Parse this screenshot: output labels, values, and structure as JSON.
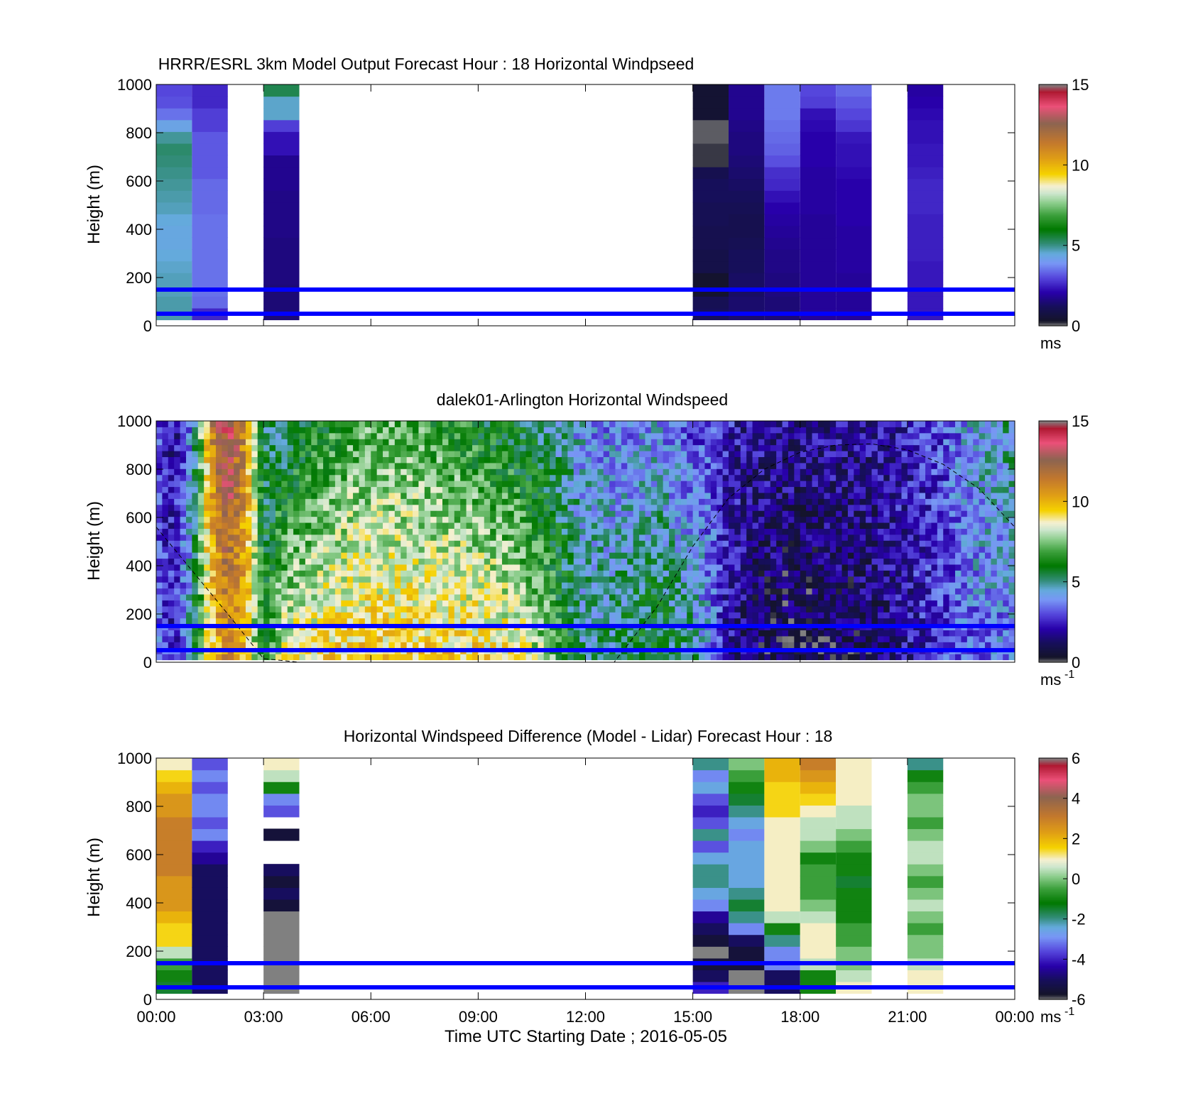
{
  "figure": {
    "xlabel": "Time UTC  Starting Date ; 2016-05-05",
    "x_ticks": [
      "00:00",
      "03:00",
      "06:00",
      "09:00",
      "12:00",
      "15:00",
      "18:00",
      "21:00",
      "00:00"
    ],
    "y_ticks": [
      "0",
      "200",
      "400",
      "600",
      "800",
      "1000"
    ],
    "reference_lines_m": [
      50,
      150
    ],
    "reference_line_color": "#0000ff"
  },
  "chart_data": [
    {
      "type": "heatmap",
      "title": "HRRR/ESRL 3km Model Output   Forecast Hour : 18 Horizontal Windpseed",
      "ylabel": "Height (m)",
      "xlim_hours": [
        0,
        24
      ],
      "ylim": [
        0,
        1000
      ],
      "colorbar": {
        "range": [
          0,
          15
        ],
        "ticks": [
          "0",
          "5",
          "10",
          "15"
        ],
        "unit": "ms",
        "unit_exp": ""
      },
      "columns": [
        {
          "start_hour": 0,
          "end_hour": 1,
          "bottom_m": 25,
          "top_m": 1000,
          "values": [
            4.8,
            4.8,
            4.7,
            4.7,
            4.6,
            4.5,
            4.4,
            4.4,
            4.5,
            4.7,
            4.8,
            4.9,
            5.0,
            5.1,
            5.2,
            4.9,
            4.3,
            3.5,
            3.1,
            3.0
          ]
        },
        {
          "start_hour": 1,
          "end_hour": 2,
          "bottom_m": 25,
          "top_m": 1000,
          "values": [
            2.6,
            3.4,
            3.5,
            3.5,
            3.5,
            3.5,
            3.5,
            3.5,
            3.5,
            3.4,
            3.4,
            3.4,
            3.2,
            3.2,
            3.2,
            3.2,
            2.9,
            2.9,
            2.6,
            2.6
          ]
        },
        {
          "start_hour": 3,
          "end_hour": 4,
          "bottom_m": 25,
          "top_m": 1000,
          "values": [
            1.5,
            1.5,
            1.5,
            1.6,
            1.6,
            1.6,
            1.6,
            1.7,
            1.7,
            1.7,
            1.7,
            1.8,
            1.8,
            1.8,
            2.3,
            2.3,
            2.9,
            4.6,
            4.6,
            5.4
          ]
        },
        {
          "start_hour": 15,
          "end_hour": 16,
          "bottom_m": 25,
          "top_m": 1000,
          "values": [
            1.2,
            1.1,
            0.4,
            0.4,
            0.9,
            0.9,
            1.0,
            1.0,
            1.1,
            1.1,
            1.2,
            1.2,
            1.0,
            0.2,
            0.2,
            0.1,
            0.1,
            0.5,
            0.5,
            0.5
          ]
        },
        {
          "start_hour": 16,
          "end_hour": 17,
          "bottom_m": 25,
          "top_m": 1000,
          "values": [
            1.4,
            1.4,
            1.3,
            1.3,
            1.2,
            1.2,
            1.1,
            1.0,
            1.0,
            1.1,
            1.2,
            1.3,
            1.4,
            1.5,
            1.6,
            1.6,
            1.7,
            1.8,
            1.8,
            1.8
          ]
        },
        {
          "start_hour": 17,
          "end_hour": 18,
          "bottom_m": 25,
          "top_m": 1000,
          "values": [
            1.5,
            1.5,
            1.6,
            1.6,
            1.7,
            1.7,
            1.8,
            1.9,
            2.0,
            2.1,
            2.3,
            2.6,
            2.7,
            3.1,
            3.3,
            3.4,
            3.5,
            3.6,
            3.6,
            3.6
          ]
        },
        {
          "start_hour": 18,
          "end_hour": 19,
          "bottom_m": 25,
          "top_m": 1000,
          "values": [
            1.9,
            1.9,
            1.9,
            1.9,
            1.9,
            1.9,
            1.9,
            1.9,
            1.9,
            2.0,
            2.0,
            2.0,
            2.0,
            2.1,
            2.1,
            2.1,
            2.2,
            2.3,
            2.9,
            3.0
          ]
        },
        {
          "start_hour": 19,
          "end_hour": 20,
          "bottom_m": 25,
          "top_m": 1000,
          "values": [
            1.9,
            1.9,
            1.9,
            1.9,
            2.0,
            2.0,
            2.0,
            2.0,
            2.1,
            2.1,
            2.1,
            2.1,
            2.2,
            2.3,
            2.3,
            2.4,
            2.8,
            3.0,
            3.2,
            3.4
          ]
        },
        {
          "start_hour": 21,
          "end_hour": 22,
          "bottom_m": 25,
          "top_m": 1000,
          "values": [
            2.4,
            2.4,
            2.4,
            2.4,
            2.4,
            2.5,
            2.5,
            2.5,
            2.5,
            2.6,
            2.6,
            2.6,
            2.5,
            2.4,
            2.4,
            2.3,
            2.3,
            2.2,
            2.1,
            2.0
          ]
        }
      ]
    },
    {
      "type": "heatmap",
      "title": "dalek01-Arlington  Horizontal Windspeed",
      "ylabel": "Height (m)",
      "xlim_hours": [
        0,
        24
      ],
      "ylim": [
        0,
        1000
      ],
      "colorbar": {
        "range": [
          0,
          15
        ],
        "ticks": [
          "0",
          "5",
          "10",
          "15"
        ],
        "unit": "ms",
        "unit_exp": "-1"
      },
      "time_profile_hours": [
        0,
        0.5,
        1,
        1.5,
        2,
        2.5,
        3,
        3.5,
        4,
        5,
        6,
        7,
        8,
        9,
        10,
        11,
        11.5,
        12,
        13,
        14,
        15,
        15.5,
        16,
        16.5,
        17,
        17.5,
        18,
        19,
        20,
        21,
        22,
        23,
        24
      ],
      "time_profile_low_ms": [
        3.5,
        2.5,
        5.0,
        9.0,
        11.0,
        9.5,
        6.0,
        8.5,
        9.0,
        9.5,
        9.5,
        9.5,
        9.5,
        9.5,
        9.0,
        7.5,
        6.0,
        5.0,
        5.5,
        6.0,
        5.0,
        4.0,
        2.0,
        1.5,
        1.0,
        0.8,
        0.7,
        1.0,
        1.2,
        2.0,
        3.0,
        3.5,
        3.5
      ],
      "time_profile_high_ms": [
        3.0,
        2.0,
        4.0,
        11.0,
        13.5,
        11.0,
        5.5,
        5.0,
        5.5,
        6.5,
        7.0,
        7.0,
        6.5,
        6.0,
        5.5,
        5.0,
        4.5,
        4.0,
        3.5,
        4.0,
        3.0,
        3.0,
        2.5,
        2.0,
        2.0,
        2.0,
        2.0,
        2.0,
        2.0,
        2.5,
        3.0,
        4.5,
        5.0
      ],
      "boundary_layer_curve": {
        "hours": [
          0,
          1,
          2,
          3,
          4,
          5,
          6,
          7,
          8,
          9,
          10,
          11,
          12,
          12.8,
          14,
          15,
          16,
          17,
          18,
          19,
          20,
          21,
          22,
          23,
          24
        ],
        "height_m": [
          560,
          380,
          200,
          15,
          0,
          0,
          0,
          0,
          0,
          0,
          0,
          0,
          0,
          0,
          230,
          480,
          680,
          800,
          870,
          900,
          905,
          880,
          820,
          720,
          560
        ]
      }
    },
    {
      "type": "heatmap",
      "title": "Horizontal Windspeed Difference (Model - Lidar) Forecast Hour : 18",
      "ylabel": "Height (m)",
      "xlim_hours": [
        0,
        24
      ],
      "ylim": [
        0,
        1000
      ],
      "colorbar": {
        "range": [
          -6,
          6
        ],
        "ticks": [
          "-6",
          "-4",
          "-2",
          "0",
          "2",
          "4",
          "6"
        ],
        "unit": "ms",
        "unit_exp": "-1"
      },
      "columns": [
        {
          "start_hour": 0,
          "end_hour": 1,
          "bottom_m": 25,
          "top_m": 1000,
          "values": [
            -1.5,
            -1.0,
            -0.5,
            0.5,
            1.5,
            1.5,
            2.0,
            2.5,
            2.5,
            2.5,
            3.0,
            3.0,
            3.0,
            3.0,
            3.0,
            2.5,
            2.5,
            2.0,
            1.5,
            1.0
          ]
        },
        {
          "start_hour": 1,
          "end_hour": 2,
          "bottom_m": 25,
          "top_m": 1000,
          "values": [
            -5.0,
            -5.0,
            -5.0,
            -5.0,
            -5.0,
            -5.0,
            -5.0,
            -5.0,
            -5.0,
            -5.0,
            -5.0,
            -4.5,
            -4.0,
            -3.0,
            -3.5,
            -3.0,
            -3.0,
            -3.5,
            -3.0,
            -3.5
          ]
        },
        {
          "start_hour": 3,
          "end_hour": 4,
          "bottom_m": 25,
          "top_m": 1000,
          "values": [
            -6.2,
            -6.2,
            -6.2,
            -6.2,
            -6.2,
            -6.2,
            -6.2,
            -5.5,
            -5.0,
            -5.5,
            -5.0,
            null,
            null,
            -5.5,
            null,
            -3.5,
            -3.0,
            -1.0,
            0.5,
            1.0
          ]
        },
        {
          "start_hour": 15,
          "end_hour": 16,
          "bottom_m": 25,
          "top_m": 1000,
          "values": [
            -4.0,
            -5.0,
            -5.5,
            -6.2,
            -5.5,
            -5.0,
            -4.5,
            -3.0,
            -2.5,
            -2.0,
            -2.0,
            -2.5,
            -3.5,
            -2.0,
            -3.5,
            -4.0,
            -3.5,
            -2.5,
            -3.0,
            -2.0
          ]
        },
        {
          "start_hour": 16,
          "end_hour": 17,
          "bottom_m": 25,
          "top_m": 1000,
          "values": [
            -6.2,
            -6.2,
            -5.5,
            -5.5,
            -5.0,
            -3.0,
            -2.0,
            -1.5,
            -2.0,
            -2.5,
            -2.5,
            -2.5,
            -2.5,
            -3.0,
            -2.5,
            -2.0,
            -1.5,
            -1.0,
            -0.5,
            0.0
          ]
        },
        {
          "start_hour": 17,
          "end_hour": 18,
          "bottom_m": 25,
          "top_m": 1000,
          "values": [
            -5.0,
            -5.0,
            -3.0,
            -3.0,
            -2.0,
            -1.0,
            0.5,
            1.0,
            1.0,
            1.0,
            1.0,
            1.0,
            1.0,
            1.0,
            1.0,
            1.5,
            1.5,
            1.5,
            2.0,
            2.0
          ]
        },
        {
          "start_hour": 18,
          "end_hour": 19,
          "bottom_m": 25,
          "top_m": 1000,
          "values": [
            -1.0,
            -1.0,
            0.5,
            1.0,
            1.0,
            1.0,
            0.5,
            0.0,
            -0.5,
            -0.5,
            -0.5,
            -1.0,
            0.0,
            0.5,
            0.5,
            1.0,
            1.5,
            2.0,
            2.5,
            3.0
          ]
        },
        {
          "start_hour": 19,
          "end_hour": 20,
          "bottom_m": 25,
          "top_m": 1000,
          "values": [
            1.0,
            0.5,
            0.0,
            0.0,
            -0.5,
            -0.5,
            -1.0,
            -1.0,
            -1.0,
            -1.5,
            -1.0,
            -1.0,
            -0.5,
            0.0,
            0.5,
            0.5,
            1.0,
            1.0,
            1.0,
            1.0
          ]
        },
        {
          "start_hour": 21,
          "end_hour": 22,
          "bottom_m": 25,
          "top_m": 1000,
          "values": [
            1.0,
            1.0,
            0.5,
            0.0,
            0.0,
            -0.5,
            0.0,
            0.5,
            0.0,
            -0.5,
            0.0,
            0.5,
            0.5,
            0.0,
            -0.5,
            0.0,
            0.0,
            -0.5,
            -1.0,
            -2.0
          ]
        }
      ]
    }
  ]
}
